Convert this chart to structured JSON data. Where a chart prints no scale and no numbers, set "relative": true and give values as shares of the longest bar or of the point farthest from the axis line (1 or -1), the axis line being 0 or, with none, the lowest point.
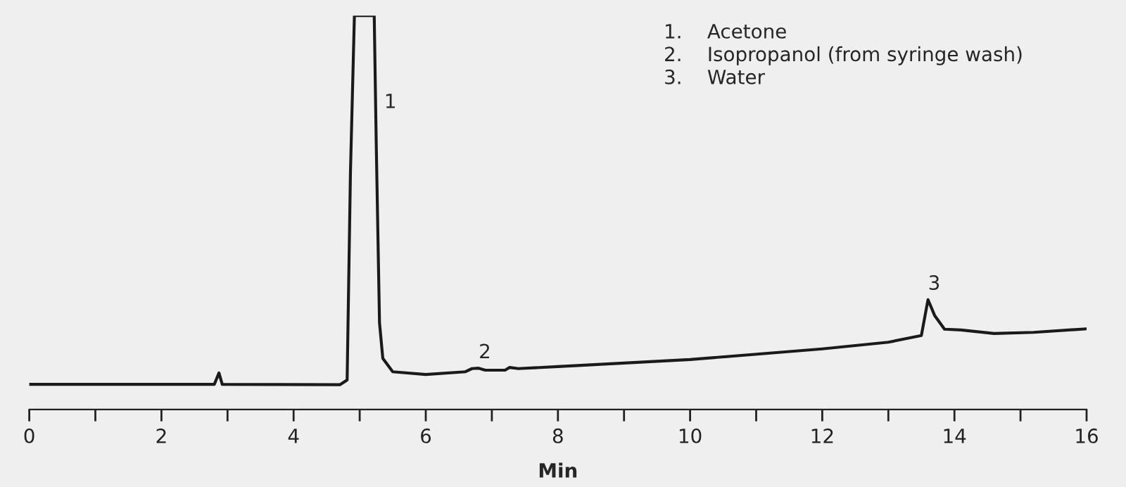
{
  "chart_data": {
    "type": "line",
    "relative": true,
    "xlabel": "Min",
    "xlim": [
      0,
      16
    ],
    "xticks": [
      0,
      {
        "value": 1,
        "label": null
      },
      2,
      {
        "value": 3,
        "label": null
      },
      4,
      {
        "value": 5,
        "label": null
      },
      6,
      {
        "value": 7,
        "label": null
      },
      8,
      {
        "value": 9,
        "label": null
      },
      10,
      {
        "value": 11,
        "label": null
      },
      12,
      {
        "value": 13,
        "label": null
      },
      14,
      {
        "value": 15,
        "label": null
      },
      16
    ],
    "grid": false,
    "legend": false,
    "marker": "none",
    "line_style": "solid",
    "series": [
      {
        "color": "#1a1a1a",
        "x": [
          0,
          2.8,
          2.87,
          2.92,
          4.7,
          4.81,
          4.86,
          4.92,
          5.22,
          5.25,
          5.3,
          5.35,
          5.5,
          6.0,
          6.6,
          6.7,
          6.8,
          6.9,
          7.2,
          7.27,
          7.4,
          8,
          10,
          12,
          13,
          13.5,
          13.6,
          13.7,
          13.85,
          14.1,
          14.6,
          15.2,
          16
        ],
        "values": [
          0.064,
          0.064,
          0.093,
          0.064,
          0.063,
          0.075,
          0.6,
          1.0,
          1.0,
          0.68,
          0.22,
          0.13,
          0.096,
          0.089,
          0.096,
          0.104,
          0.105,
          0.1,
          0.1,
          0.107,
          0.104,
          0.109,
          0.127,
          0.154,
          0.171,
          0.188,
          0.279,
          0.239,
          0.204,
          0.202,
          0.193,
          0.196,
          0.205
        ]
      }
    ],
    "annotations": [
      "1.    Acetone",
      "2.    Isopropanol (from syringe wash)",
      "3.    Water",
      {
        "text": "1",
        "x": 5.37,
        "y": 0.74
      },
      {
        "text": "2",
        "x": 6.8,
        "y": 0.105
      },
      {
        "text": "3",
        "x": 13.6,
        "y": 0.279
      }
    ]
  }
}
